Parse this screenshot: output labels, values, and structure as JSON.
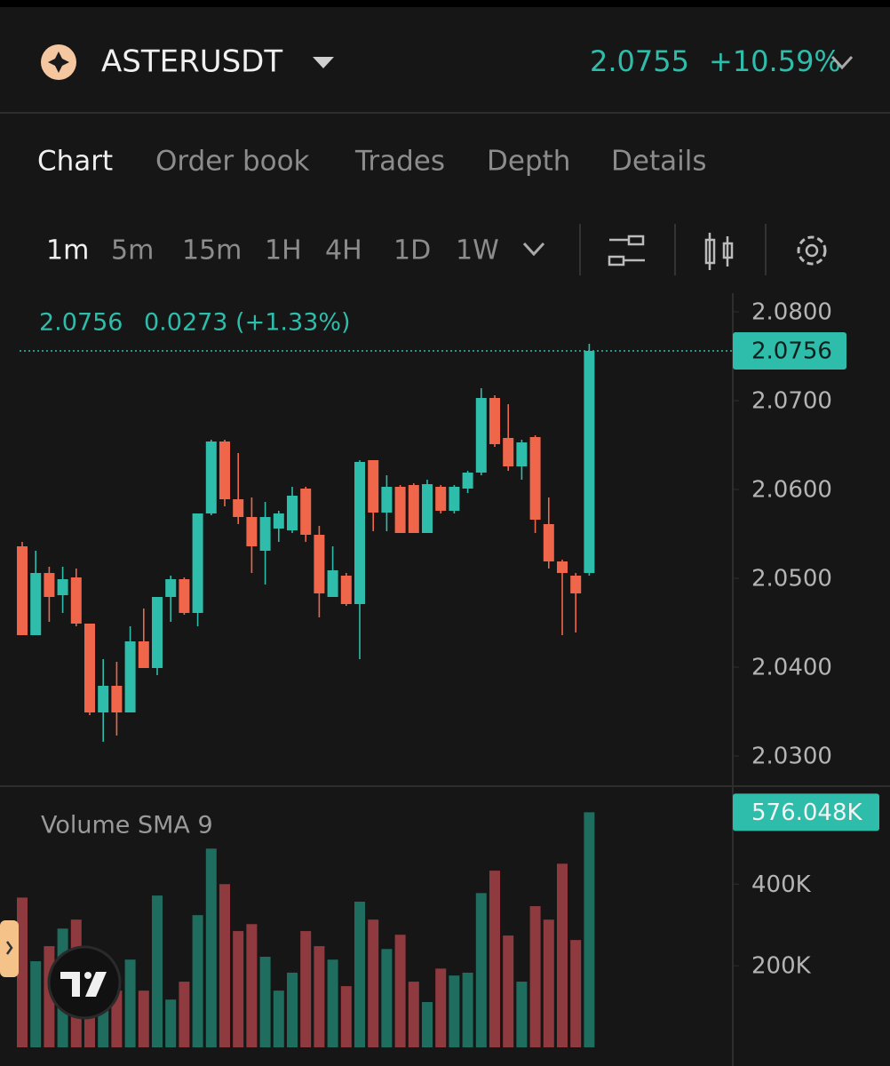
{
  "header": {
    "symbol": "ASTERUSDT",
    "price": "2.0755",
    "change": "+10.59%"
  },
  "tabs": [
    "Chart",
    "Order book",
    "Trades",
    "Depth",
    "Details"
  ],
  "intervals": [
    "1m",
    "5m",
    "15m",
    "1H",
    "4H",
    "1D",
    "1W"
  ],
  "legend": {
    "price": "2.0756",
    "change": "0.0273 (+1.33%)"
  },
  "chart_data": [
    {
      "type": "candlestick",
      "up_color": "#2ebdaa",
      "down_color": "#f0664a",
      "open": [
        2.0536,
        2.0436,
        2.0506,
        2.0481,
        2.0501,
        2.0449,
        2.0349,
        2.0379,
        2.0349,
        2.0429,
        2.0399,
        2.0479,
        2.0499,
        2.0461,
        2.0573,
        2.0654,
        2.0589,
        2.0569,
        2.0531,
        2.0556,
        2.0554,
        2.0601,
        2.0549,
        2.0479,
        2.0503,
        2.0471,
        2.0633,
        2.0574,
        2.0603,
        2.0605,
        2.0551,
        2.0603,
        2.0576,
        2.0601,
        2.0619,
        2.0703,
        2.0658,
        2.0626,
        2.0659,
        2.0561,
        2.0519,
        2.0503,
        2.0506
      ],
      "high": [
        2.0541,
        2.0531,
        2.0513,
        2.0513,
        2.0511,
        2.0449,
        2.0409,
        2.0406,
        2.0446,
        2.0466,
        2.0479,
        2.0503,
        2.0501,
        2.0573,
        2.0656,
        2.0656,
        2.0641,
        2.0591,
        2.0586,
        2.0576,
        2.0603,
        2.0603,
        2.0559,
        2.0536,
        2.0506,
        2.0633,
        2.0633,
        2.0616,
        2.0605,
        2.0607,
        2.0611,
        2.0605,
        2.0605,
        2.0621,
        2.0714,
        2.0706,
        2.0696,
        2.0656,
        2.0661,
        2.0591,
        2.0521,
        2.0506,
        2.0764
      ],
      "low": [
        2.0436,
        2.0436,
        2.0451,
        2.0461,
        2.0446,
        2.0346,
        2.0316,
        2.0323,
        2.0349,
        2.0399,
        2.0391,
        2.0451,
        2.0459,
        2.0446,
        2.0571,
        2.0581,
        2.0561,
        2.0506,
        2.0493,
        2.0541,
        2.0551,
        2.0541,
        2.0456,
        2.0479,
        2.0469,
        2.0409,
        2.0553,
        2.0553,
        2.0551,
        2.0551,
        2.0551,
        2.0573,
        2.0573,
        2.0596,
        2.0616,
        2.0648,
        2.0621,
        2.0611,
        2.0551,
        2.0511,
        2.0436,
        2.0439,
        2.0503
      ],
      "close": [
        2.0436,
        2.0506,
        2.0479,
        2.0499,
        2.0449,
        2.0349,
        2.0379,
        2.0349,
        2.0429,
        2.0399,
        2.0479,
        2.0499,
        2.0461,
        2.0573,
        2.0654,
        2.0589,
        2.0569,
        2.0536,
        2.0569,
        2.0573,
        2.0593,
        2.0549,
        2.0483,
        2.0509,
        2.0471,
        2.0631,
        2.0574,
        2.0603,
        2.0551,
        2.0551,
        2.0606,
        2.0576,
        2.0603,
        2.0619,
        2.0703,
        2.0651,
        2.0626,
        2.0653,
        2.0566,
        2.0519,
        2.0506,
        2.0483,
        2.0756
      ],
      "ylim": [
        2.027,
        2.082
      ],
      "yticks": [
        {
          "value": 2.08,
          "label": "2.0800"
        },
        {
          "value": 2.07,
          "label": "2.0700"
        },
        {
          "value": 2.06,
          "label": "2.0600"
        },
        {
          "value": 2.05,
          "label": "2.0500"
        },
        {
          "value": 2.04,
          "label": "2.0400"
        },
        {
          "value": 2.03,
          "label": "2.0300"
        }
      ]
    },
    {
      "type": "bar",
      "title": "Volume SMA 9",
      "up_color": "#1f6d5e",
      "down_color": "#8e3a3e",
      "values": [
        367000,
        211000,
        248000,
        291000,
        313000,
        215000,
        139000,
        139000,
        215000,
        139000,
        372000,
        117000,
        161000,
        324000,
        487000,
        400000,
        285000,
        302000,
        222000,
        139000,
        183000,
        285000,
        248000,
        215000,
        150000,
        357000,
        313000,
        241000,
        276000,
        161000,
        111000,
        193000,
        176000,
        183000,
        378000,
        433000,
        274000,
        161000,
        346000,
        313000,
        450000,
        263000,
        576048
      ],
      "value_labels": {
        "42": "576.048K"
      },
      "ylim": [
        0,
        640000
      ],
      "yticks": [
        {
          "value": 200000,
          "label": "200K"
        },
        {
          "value": 400000,
          "label": "400K"
        }
      ]
    }
  ]
}
